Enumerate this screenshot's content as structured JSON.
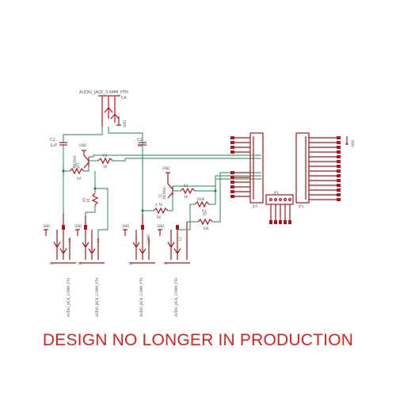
{
  "banner": "DESIGN NO LONGER IN PRODUCTION",
  "colors": {
    "wire": "#1f8a4c",
    "part": "#b5121b",
    "text": "#555555",
    "banner": "#e0201c"
  },
  "parts": {
    "top_jack": {
      "name": "AUDIO_JACK_3.5MM_PTH",
      "ref": "CA"
    },
    "c2": {
      "ref": "C2",
      "value": "1uF"
    },
    "c1": {
      "ref": "C1",
      "value": "1uF"
    },
    "q1": {
      "ref": "T1",
      "type": "2N3904"
    },
    "q2": {
      "ref": "T2",
      "type": "2N3904"
    },
    "r1": {
      "ref": "R1",
      "value": "1K"
    },
    "r2": {
      "ref": "R2",
      "value": "1K"
    },
    "r4": {
      "ref": "R4",
      "value": "4.7K"
    },
    "r5": {
      "ref": "R5",
      "value": "1K"
    },
    "r6": {
      "ref": "R6",
      "value": "4.7K"
    },
    "r3": {
      "ref": "R3",
      "value": "100K"
    },
    "r7": {
      "ref": "R7",
      "value": "10K"
    },
    "r8": {
      "ref": "R8",
      "value": "10K"
    },
    "gnd": "GND",
    "jp1": "JP1",
    "jp2": "JP2",
    "jp3": "JP3",
    "bottom_jacks": [
      {
        "name": "AUDIO_JACK_3.5MM_PTH",
        "ref": "J1",
        "value": "L1"
      },
      {
        "name": "AUDIO_JACK_3.5MM_PTH",
        "ref": "J1",
        "value": "L1"
      },
      {
        "name": "AUDIO_JACK_3.5MM_PTH",
        "ref": "J2",
        "value": "L2ARC"
      },
      {
        "name": "AUDIO_JACK_3.5MM_PTH",
        "ref": "J2",
        "value": "L2"
      }
    ]
  }
}
